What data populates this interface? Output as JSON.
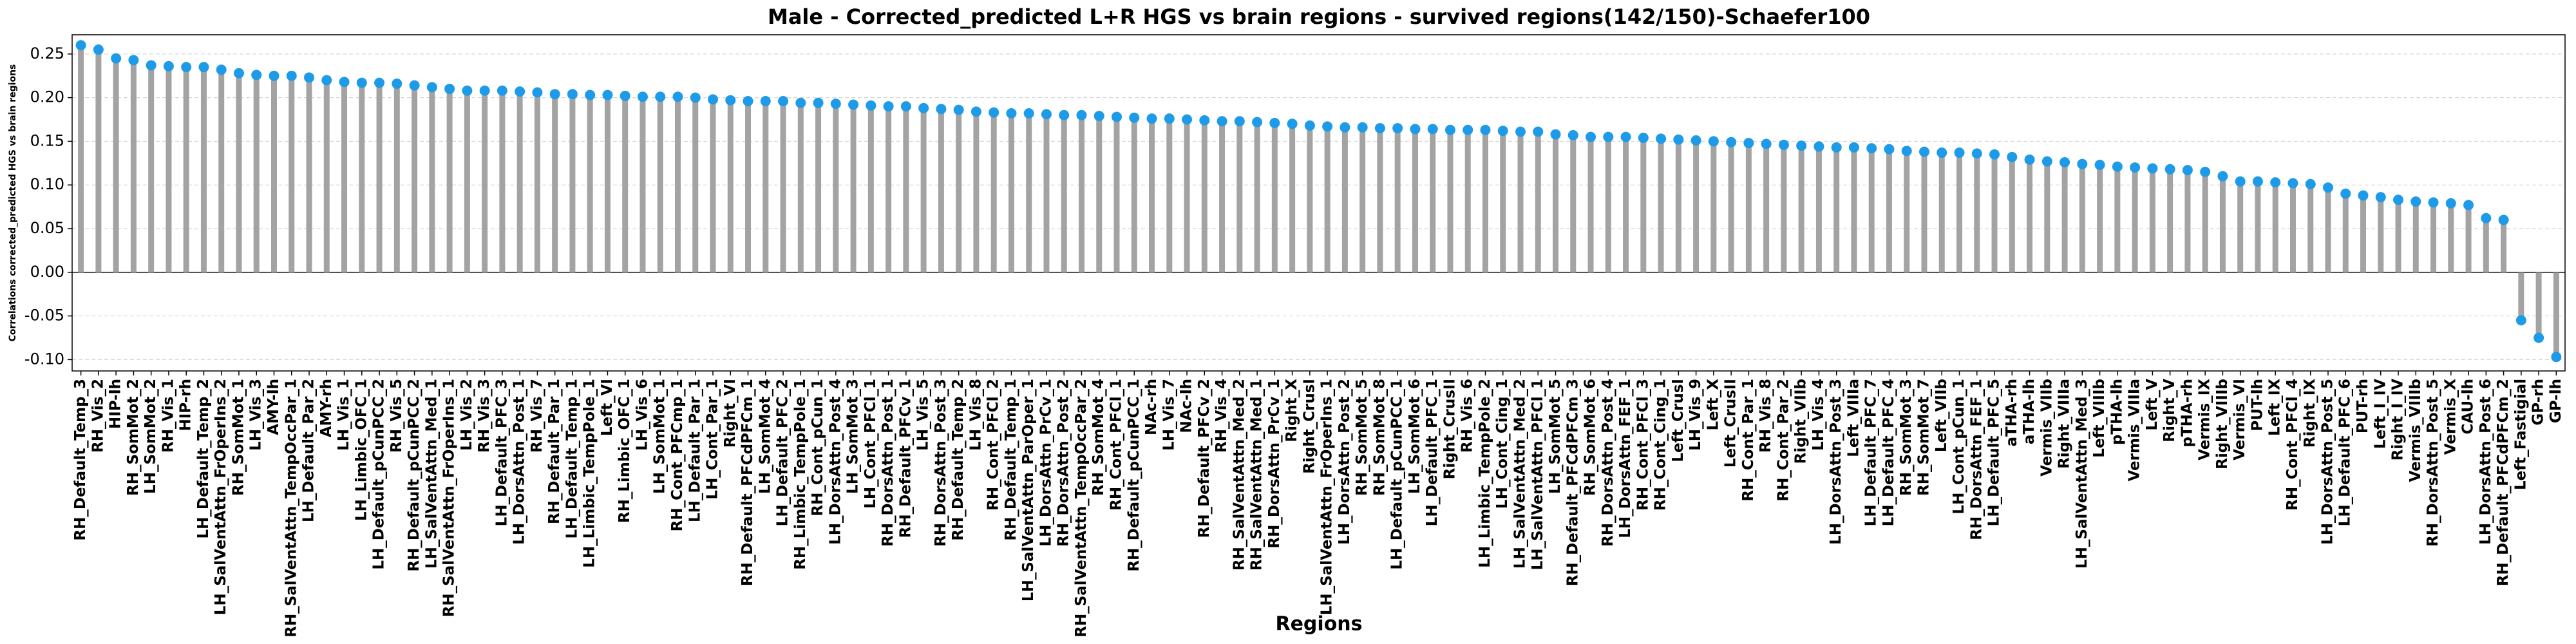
{
  "chart_data": {
    "type": "lollipop",
    "title": "Male - Corrected_predicted L+R HGS vs brain regions - survived regions(142/150)-Schaefer100",
    "xlabel": "Regions",
    "ylabel": "Correlations corrected_predicted HGS vs brain regions",
    "stem_color": "#a3a3a3",
    "color": "#1e9be8",
    "grid": true,
    "ylim": [
      -0.113,
      0.272
    ],
    "yticks": [
      {
        "value": -0.1,
        "label": "-0.10"
      },
      -0.05,
      {
        "value": 0,
        "label": "0.00"
      },
      0.05,
      {
        "value": 0.1,
        "label": "0.10"
      },
      0.15,
      {
        "value": 0.2,
        "label": "0.20"
      },
      0.25
    ],
    "categories": [
      "RH_Default_Temp_3",
      "RH_Vis_2",
      "HIP-lh",
      "RH_SomMot_2",
      "LH_SomMot_2",
      "RH_Vis_1",
      "HIP-rh",
      "LH_Default_Temp_2",
      "LH_SalVentAttn_FrOperIns_2",
      "RH_SomMot_1",
      "LH_Vis_3",
      "AMY-lh",
      "RH_SalVentAttn_TempOccPar_1",
      "LH_Default_Par_2",
      "AMY-rh",
      "LH_Vis_1",
      "LH_Limbic_OFC_1",
      "LH_Default_pCunPCC_2",
      "RH_Vis_5",
      "RH_Default_pCunPCC_2",
      "LH_SalVentAttn_Med_1",
      "RH_SalVentAttn_FrOperIns_1",
      "LH_Vis_2",
      "RH_Vis_3",
      "LH_Default_PFC_3",
      "LH_DorsAttn_Post_1",
      "RH_Vis_7",
      "RH_Default_Par_1",
      "LH_Default_Temp_1",
      "LH_Limbic_TempPole_1",
      "Left_VI",
      "RH_Limbic_OFC_1",
      "LH_Vis_6",
      "LH_SomMot_1",
      "RH_Cont_PFCmp_1",
      "LH_Default_Par_1",
      "LH_Cont_Par_1",
      "Right_VI",
      "RH_Default_PFCdPFCm_1",
      "LH_SomMot_4",
      "LH_Default_PFC_2",
      "RH_Limbic_TempPole_1",
      "RH_Cont_pCun_1",
      "LH_DorsAttn_Post_4",
      "LH_SomMot_3",
      "LH_Cont_PFCl_1",
      "RH_DorsAttn_Post_1",
      "RH_Default_PFCv_1",
      "LH_Vis_5",
      "RH_DorsAttn_Post_3",
      "RH_Default_Temp_2",
      "LH_Vis_8",
      "RH_Cont_PFCl_2",
      "RH_Default_Temp_1",
      "LH_SalVentAttn_ParOper_1",
      "LH_DorsAttn_PrCv_1",
      "RH_DorsAttn_Post_2",
      "RH_SalVentAttn_TempOccPar_2",
      "RH_SomMot_4",
      "RH_Cont_PFCl_1",
      "RH_Default_pCunPCC_1",
      "NAc-rh",
      "LH_Vis_7",
      "NAc-lh",
      "RH_Default_PFCv_2",
      "RH_Vis_4",
      "RH_SalVentAttn_Med_2",
      "RH_SalVentAttn_Med_1",
      "RH_DorsAttn_PrCv_1",
      "Right_X",
      "Right_CrusI",
      "LH_SalVentAttn_FrOperIns_1",
      "LH_DorsAttn_Post_2",
      "RH_SomMot_5",
      "RH_SomMot_8",
      "LH_Default_pCunPCC_1",
      "LH_SomMot_6",
      "LH_Default_PFC_1",
      "Right_CrusII",
      "RH_Vis_6",
      "LH_Limbic_TempPole_2",
      "LH_Cont_Cing_1",
      "LH_SalVentAttn_Med_2",
      "LH_SalVentAttn_PFCl_1",
      "LH_SomMot_5",
      "RH_Default_PFCdPFCm_3",
      "RH_SomMot_6",
      "RH_DorsAttn_Post_4",
      "LH_DorsAttn_FEF_1",
      "RH_Cont_PFCl_3",
      "RH_Cont_Cing_1",
      "Left_CrusI",
      "LH_Vis_9",
      "Left_X",
      "Left_CrusII",
      "RH_Cont_Par_1",
      "RH_Vis_8",
      "RH_Cont_Par_2",
      "Right_VIIb",
      "LH_Vis_4",
      "LH_DorsAttn_Post_3",
      "Left_VIIIa",
      "LH_Default_PFC_7",
      "LH_Default_PFC_4",
      "RH_SomMot_3",
      "RH_SomMot_7",
      "Left_VIIb",
      "LH_Cont_pCun_1",
      "RH_DorsAttn_FEF_1",
      "LH_Default_PFC_5",
      "aTHA-rh",
      "aTHA-lh",
      "Vermis_VIIb",
      "Right_VIIIa",
      "LH_SalVentAttn_Med_3",
      "Left_VIIIb",
      "pTHA-lh",
      "Vermis_VIIIa",
      "Left_V",
      "Right_V",
      "pTHA-rh",
      "Vermis_IX",
      "Right_VIIIb",
      "Vermis_VI",
      "PUT-lh",
      "Left_IX",
      "RH_Cont_PFCl_4",
      "Right_IX",
      "LH_DorsAttn_Post_5",
      "LH_Default_PFC_6",
      "PUT-rh",
      "Left_I_IV",
      "Right_I_IV",
      "Vermis_VIIIb",
      "RH_DorsAttn_Post_5",
      "Vermis_X",
      "CAU-lh",
      "LH_DorsAttn_Post_6",
      "RH_Default_PFCdPFCm_2",
      "Left_Fastigial",
      "GP-rh",
      "GP-lh"
    ],
    "values": [
      0.26,
      0.255,
      0.245,
      0.243,
      0.237,
      0.236,
      0.235,
      0.235,
      0.232,
      0.228,
      0.226,
      0.225,
      0.225,
      0.223,
      0.22,
      0.218,
      0.217,
      0.217,
      0.216,
      0.214,
      0.212,
      0.21,
      0.208,
      0.208,
      0.208,
      0.207,
      0.206,
      0.204,
      0.204,
      0.203,
      0.203,
      0.202,
      0.201,
      0.201,
      0.201,
      0.2,
      0.198,
      0.197,
      0.196,
      0.196,
      0.196,
      0.194,
      0.194,
      0.193,
      0.192,
      0.191,
      0.19,
      0.19,
      0.188,
      0.187,
      0.186,
      0.184,
      0.183,
      0.182,
      0.182,
      0.181,
      0.18,
      0.18,
      0.179,
      0.178,
      0.177,
      0.176,
      0.176,
      0.175,
      0.174,
      0.173,
      0.173,
      0.172,
      0.171,
      0.17,
      0.168,
      0.167,
      0.166,
      0.166,
      0.165,
      0.165,
      0.164,
      0.164,
      0.163,
      0.163,
      0.163,
      0.162,
      0.161,
      0.161,
      0.158,
      0.157,
      0.155,
      0.155,
      0.155,
      0.154,
      0.153,
      0.152,
      0.151,
      0.15,
      0.149,
      0.148,
      0.147,
      0.146,
      0.145,
      0.144,
      0.143,
      0.143,
      0.142,
      0.141,
      0.139,
      0.138,
      0.137,
      0.137,
      0.136,
      0.135,
      0.132,
      0.129,
      0.127,
      0.126,
      0.124,
      0.123,
      0.121,
      0.12,
      0.119,
      0.118,
      0.117,
      0.115,
      0.11,
      0.104,
      0.104,
      0.103,
      0.102,
      0.101,
      0.097,
      0.09,
      0.088,
      0.086,
      0.083,
      0.081,
      0.08,
      0.079,
      0.077,
      0.062,
      0.06,
      -0.055,
      -0.075,
      -0.097
    ]
  }
}
